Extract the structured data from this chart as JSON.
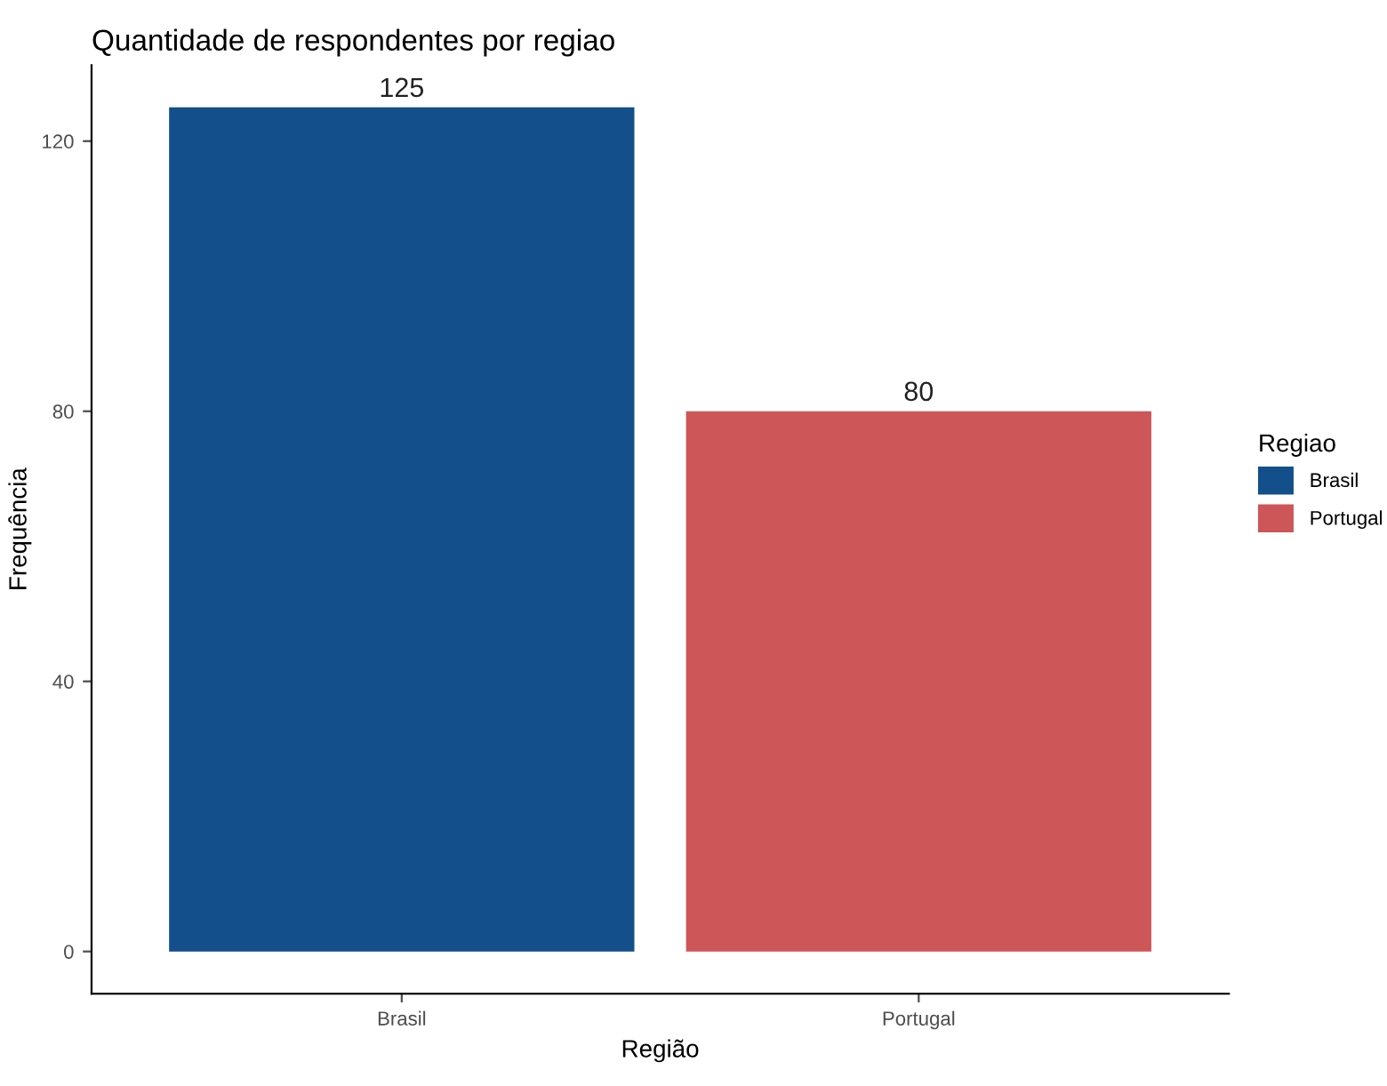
{
  "chart_data": {
    "type": "bar",
    "title": "Quantidade de respondentes por regiao",
    "xlabel": "Região",
    "ylabel": "Frequência",
    "legend_title": "Regiao",
    "categories": [
      "Brasil",
      "Portugal"
    ],
    "series": [
      {
        "name": "Brasil",
        "color": "#134f8a",
        "values": [
          125,
          null
        ]
      },
      {
        "name": "Portugal",
        "color": "#cd5658",
        "values": [
          null,
          80
        ]
      }
    ],
    "ylim": [
      -6.25,
      131.25
    ],
    "yticks": [
      0,
      40,
      80,
      120
    ],
    "grid": false,
    "legend": "right",
    "data_labels": true
  }
}
